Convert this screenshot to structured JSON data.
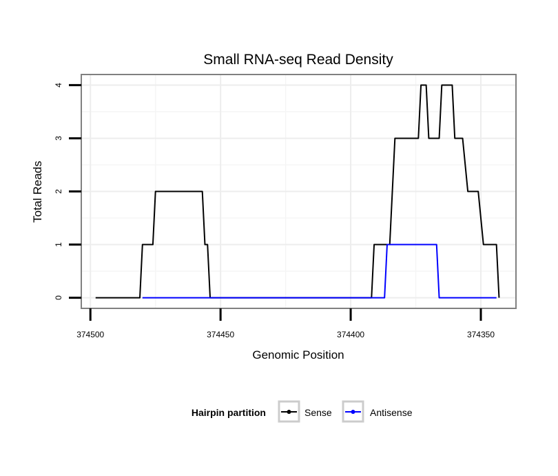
{
  "chart_data": {
    "type": "line",
    "title": "Small RNA-seq Read Density",
    "xlabel": "Genomic Position",
    "ylabel": "Total Reads",
    "x_reversed": true,
    "xlim": [
      374503.5,
      374336.5
    ],
    "ylim": [
      -0.2,
      4.2
    ],
    "xticks": [
      374500,
      374450,
      374400,
      374350
    ],
    "xtick_labels": [
      "374500",
      "374450",
      "374400",
      "374350"
    ],
    "yticks": [
      0,
      1,
      2,
      3,
      4
    ],
    "ytick_labels": [
      "0",
      "1",
      "2",
      "3",
      "4"
    ],
    "grid": true,
    "legend": {
      "title": "Hairpin partition",
      "position": "bottom"
    },
    "series": [
      {
        "name": "Sense",
        "color": "#000000",
        "points": [
          [
            374498,
            0
          ],
          [
            374481,
            0
          ],
          [
            374480,
            1
          ],
          [
            374476,
            1
          ],
          [
            374475,
            2
          ],
          [
            374457,
            2
          ],
          [
            374456,
            1
          ],
          [
            374455,
            1
          ],
          [
            374454,
            0
          ],
          [
            374392,
            0
          ],
          [
            374391,
            1
          ],
          [
            374385,
            1
          ],
          [
            374383,
            3
          ],
          [
            374374,
            3
          ],
          [
            374373,
            4
          ],
          [
            374371,
            4
          ],
          [
            374370,
            3
          ],
          [
            374366,
            3
          ],
          [
            374365,
            4
          ],
          [
            374361,
            4
          ],
          [
            374360,
            3
          ],
          [
            374357,
            3
          ],
          [
            374355,
            2
          ],
          [
            374351,
            2
          ],
          [
            374349,
            1
          ],
          [
            374344,
            1
          ],
          [
            374343,
            0
          ]
        ]
      },
      {
        "name": "Antisense",
        "color": "#0000ff",
        "points": [
          [
            374480,
            0
          ],
          [
            374454,
            0
          ],
          [
            374387,
            0
          ],
          [
            374386,
            1
          ],
          [
            374367,
            1
          ],
          [
            374366,
            0
          ],
          [
            374344,
            0
          ]
        ]
      }
    ]
  }
}
